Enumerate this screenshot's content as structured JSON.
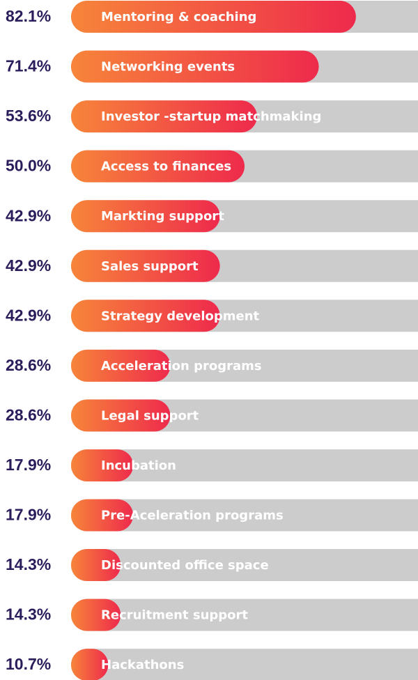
{
  "chart_data": {
    "type": "bar",
    "categories": [
      "Mentoring & coaching",
      "Networking events",
      "Investor -startup matchmaking",
      "Access to finances",
      "Markting support",
      "Sales support",
      "Strategy development",
      "Acceleration programs",
      "Legal support",
      "Incubation",
      "Pre-Aceleration programs",
      "Discounted office space",
      "Recruitment support",
      "Hackathons"
    ],
    "values": [
      82.1,
      71.4,
      53.6,
      50.0,
      42.9,
      42.9,
      42.9,
      28.6,
      28.6,
      17.9,
      17.9,
      14.3,
      14.3,
      10.7
    ],
    "value_labels": [
      "82.1%",
      "71.4%",
      "53.6%",
      "50.0%",
      "42.9%",
      "42.9%",
      "42.9%",
      "28.6%",
      "28.6%",
      "17.9%",
      "17.9%",
      "14.3%",
      "14.3%",
      "10.7%"
    ],
    "gradient": [
      "#f7853a",
      "#ee2a4c"
    ],
    "track_color": "#cccccc",
    "label_color": "#2b1d5c"
  }
}
